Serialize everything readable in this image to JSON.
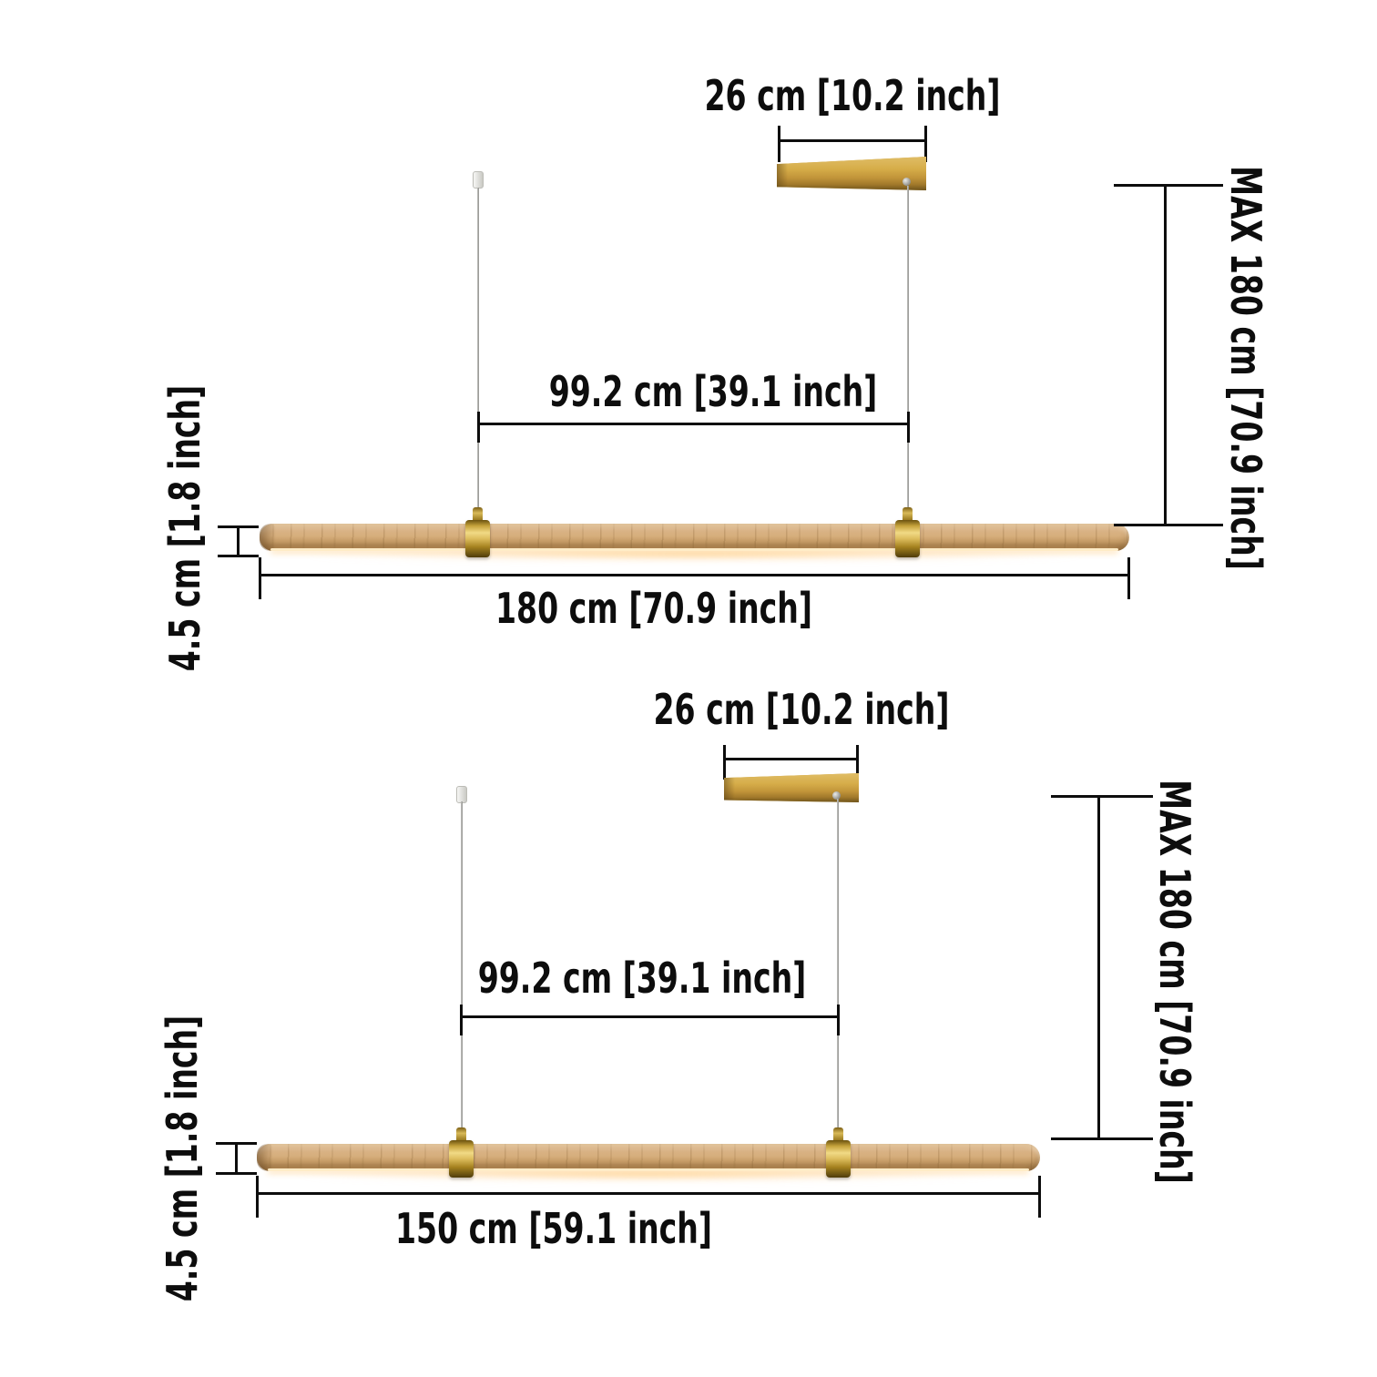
{
  "variants": [
    {
      "name": "180 cm",
      "labels": {
        "canopy_width": "26 cm [10.2 inch]",
        "cord_spacing": "99.2 cm [39.1 inch]",
        "max_drop": "MAX 180 cm [70.9 inch]",
        "bar_length": "180 cm [70.9 inch]",
        "bar_height": "4.5 cm [1.8 inch]"
      }
    },
    {
      "name": "150 cm",
      "labels": {
        "canopy_width": "26 cm [10.2 inch]",
        "cord_spacing": "99.2 cm [39.1 inch]",
        "max_drop": "MAX 180 cm [70.9 inch]",
        "bar_length": "150 cm [59.1 inch]",
        "bar_height": "4.5 cm [1.8 inch]"
      }
    }
  ],
  "colors": {
    "background": "#ffffff",
    "dimension_line": "#0d0d0d",
    "wire": "#8f8f8c",
    "wood_bar": "#d2aa77",
    "canopy_wood": "#cda440",
    "brass": "#ddbd5d",
    "glow": "#ffdca3"
  }
}
